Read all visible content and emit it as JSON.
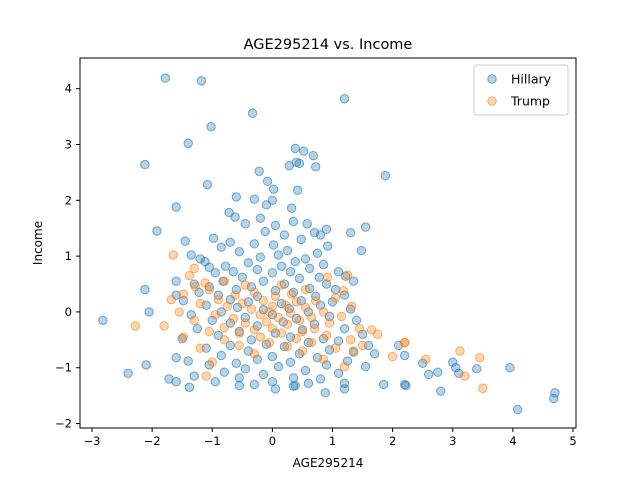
{
  "chart_data": {
    "type": "scatter",
    "title": "AGE295214 vs. Income",
    "xlabel": "AGE295214",
    "ylabel": "Income",
    "xlim": [
      -3.2,
      5.05
    ],
    "ylim": [
      -2.08,
      4.55
    ],
    "xticks": [
      -3,
      -2,
      -1,
      0,
      1,
      2,
      3,
      4,
      5
    ],
    "yticks": [
      -2,
      -1,
      0,
      1,
      2,
      3,
      4
    ],
    "legend_position": "top-right",
    "grid": false,
    "series": [
      {
        "name": "Hillary",
        "color": "#1f77b4",
        "points": [
          [
            -1.78,
            4.19
          ],
          [
            -1.18,
            4.14
          ],
          [
            1.2,
            3.82
          ],
          [
            -0.33,
            3.56
          ],
          [
            -1.02,
            3.32
          ],
          [
            -1.4,
            3.02
          ],
          [
            0.38,
            2.93
          ],
          [
            0.52,
            2.88
          ],
          [
            0.68,
            2.8
          ],
          [
            0.4,
            2.68
          ],
          [
            0.28,
            2.62
          ],
          [
            0.45,
            2.66
          ],
          [
            -2.12,
            2.64
          ],
          [
            0.72,
            2.6
          ],
          [
            -0.22,
            2.52
          ],
          [
            1.88,
            2.44
          ],
          [
            -0.08,
            2.34
          ],
          [
            -1.08,
            2.28
          ],
          [
            0.02,
            2.2
          ],
          [
            0.42,
            2.18
          ],
          [
            -0.6,
            2.06
          ],
          [
            -0.3,
            2.02
          ],
          [
            0.0,
            2.0
          ],
          [
            -0.1,
            1.92
          ],
          [
            -1.6,
            1.88
          ],
          [
            0.32,
            1.86
          ],
          [
            -0.72,
            1.78
          ],
          [
            -0.62,
            1.7
          ],
          [
            -0.2,
            1.68
          ],
          [
            0.35,
            1.62
          ],
          [
            0.58,
            1.58
          ],
          [
            1.55,
            1.52
          ],
          [
            -0.45,
            1.58
          ],
          [
            0.05,
            1.55
          ],
          [
            0.9,
            1.48
          ],
          [
            -1.92,
            1.45
          ],
          [
            1.3,
            1.42
          ],
          [
            -0.12,
            1.44
          ],
          [
            0.2,
            1.38
          ],
          [
            0.7,
            1.42
          ],
          [
            0.8,
            1.38
          ],
          [
            -0.98,
            1.32
          ],
          [
            0.48,
            1.3
          ],
          [
            -0.7,
            1.25
          ],
          [
            -1.45,
            1.27
          ],
          [
            0.02,
            1.2
          ],
          [
            0.92,
            1.18
          ],
          [
            -0.3,
            1.22
          ],
          [
            1.48,
            1.1
          ],
          [
            -0.85,
            1.16
          ],
          [
            0.25,
            1.1
          ],
          [
            -0.55,
            1.08
          ],
          [
            0.75,
            1.05
          ],
          [
            -1.35,
            1.02
          ],
          [
            0.1,
            1.02
          ],
          [
            -0.2,
            0.98
          ],
          [
            0.55,
            0.95
          ],
          [
            -1.2,
            0.95
          ],
          [
            -1.12,
            0.9
          ],
          [
            0.38,
            0.9
          ],
          [
            -0.4,
            0.88
          ],
          [
            0.85,
            0.85
          ],
          [
            -0.78,
            0.82
          ],
          [
            0.15,
            0.82
          ],
          [
            -1.05,
            0.8
          ],
          [
            0.62,
            0.78
          ],
          [
            1.1,
            0.72
          ],
          [
            -0.25,
            0.76
          ],
          [
            -0.65,
            0.72
          ],
          [
            0.3,
            0.72
          ],
          [
            -0.95,
            0.7
          ],
          [
            0.0,
            0.7
          ],
          [
            -1.6,
            0.55
          ],
          [
            1.22,
            0.64
          ],
          [
            0.78,
            0.62
          ],
          [
            -0.5,
            0.62
          ],
          [
            0.45,
            0.6
          ],
          [
            -2.12,
            0.4
          ],
          [
            -1.3,
            0.5
          ],
          [
            -0.15,
            0.55
          ],
          [
            1.35,
            0.55
          ],
          [
            -0.82,
            0.55
          ],
          [
            0.9,
            0.5
          ],
          [
            0.2,
            0.5
          ],
          [
            -1.05,
            0.45
          ],
          [
            -0.35,
            0.45
          ],
          [
            0.62,
            0.42
          ],
          [
            1.05,
            0.4
          ],
          [
            -0.6,
            0.4
          ],
          [
            0.05,
            0.38
          ],
          [
            -1.22,
            0.35
          ],
          [
            0.35,
            0.35
          ],
          [
            -1.6,
            0.3
          ],
          [
            -0.9,
            0.3
          ],
          [
            1.2,
            0.3
          ],
          [
            0.72,
            0.28
          ],
          [
            -0.25,
            0.28
          ],
          [
            -1.48,
            0.2
          ],
          [
            -0.7,
            0.22
          ],
          [
            0.48,
            0.2
          ],
          [
            1.0,
            0.18
          ],
          [
            -0.4,
            0.18
          ],
          [
            0.15,
            0.15
          ],
          [
            -2.05,
            0.0
          ],
          [
            -1.1,
            0.12
          ],
          [
            0.8,
            0.12
          ],
          [
            -0.58,
            0.08
          ],
          [
            0.28,
            0.06
          ],
          [
            1.3,
            0.05
          ],
          [
            -0.15,
            0.04
          ],
          [
            0.6,
            0.0
          ],
          [
            -0.85,
            0.0
          ],
          [
            -1.35,
            -0.05
          ],
          [
            0.0,
            -0.05
          ],
          [
            0.95,
            -0.08
          ],
          [
            -0.45,
            -0.1
          ],
          [
            0.4,
            -0.12
          ],
          [
            1.4,
            -0.15
          ],
          [
            -1.0,
            -0.15
          ],
          [
            0.18,
            -0.18
          ],
          [
            -0.7,
            -0.2
          ],
          [
            0.7,
            -0.22
          ],
          [
            -0.25,
            -0.25
          ],
          [
            1.2,
            -0.3
          ],
          [
            -1.25,
            -0.3
          ],
          [
            0.5,
            -0.32
          ],
          [
            -0.55,
            -0.35
          ],
          [
            0.05,
            -0.38
          ],
          [
            1.5,
            -0.4
          ],
          [
            -0.9,
            -0.42
          ],
          [
            0.3,
            -0.45
          ],
          [
            0.85,
            -0.48
          ],
          [
            -0.35,
            -0.5
          ],
          [
            -1.5,
            -0.48
          ],
          [
            1.1,
            -0.52
          ],
          [
            0.6,
            -0.55
          ],
          [
            -0.1,
            -0.58
          ],
          [
            -0.7,
            -0.6
          ],
          [
            1.6,
            -0.6
          ],
          [
            2.1,
            -0.6
          ],
          [
            0.2,
            -0.62
          ],
          [
            -1.1,
            -0.65
          ],
          [
            0.95,
            -0.68
          ],
          [
            -0.4,
            -0.7
          ],
          [
            1.35,
            -0.72
          ],
          [
            0.45,
            -0.75
          ],
          [
            -0.85,
            -0.78
          ],
          [
            0.0,
            -0.8
          ],
          [
            1.7,
            -0.75
          ],
          [
            2.2,
            -0.78
          ],
          [
            -1.6,
            -0.82
          ],
          [
            0.75,
            -0.82
          ],
          [
            -0.25,
            -0.85
          ],
          [
            -1.4,
            -0.88
          ],
          [
            1.25,
            -0.88
          ],
          [
            0.3,
            -0.9
          ],
          [
            -0.6,
            -0.92
          ],
          [
            2.5,
            -0.92
          ],
          [
            3.0,
            -0.9
          ],
          [
            -1.05,
            -0.95
          ],
          [
            0.9,
            -0.95
          ],
          [
            -2.1,
            -0.95
          ],
          [
            0.1,
            -0.98
          ],
          [
            1.55,
            -0.98
          ],
          [
            3.05,
            -1.0
          ],
          [
            3.4,
            -1.02
          ],
          [
            3.95,
            -1.0
          ],
          [
            -0.45,
            -1.02
          ],
          [
            2.75,
            -1.08
          ],
          [
            -2.4,
            -1.1
          ],
          [
            0.55,
            -1.05
          ],
          [
            -0.8,
            -1.08
          ],
          [
            1.1,
            -1.1
          ],
          [
            3.1,
            -1.1
          ],
          [
            2.6,
            -1.12
          ],
          [
            -0.15,
            -1.12
          ],
          [
            -1.3,
            -1.15
          ],
          [
            0.35,
            -1.18
          ],
          [
            -0.55,
            -1.18
          ],
          [
            0.8,
            -1.2
          ],
          [
            -1.72,
            -1.2
          ],
          [
            -1.6,
            -1.25
          ],
          [
            0.0,
            -1.25
          ],
          [
            1.2,
            -1.28
          ],
          [
            -0.95,
            -1.25
          ],
          [
            0.6,
            -1.28
          ],
          [
            1.85,
            -1.3
          ],
          [
            2.2,
            -1.3
          ],
          [
            -0.3,
            -1.3
          ],
          [
            2.22,
            -1.32
          ],
          [
            -0.55,
            -1.32
          ],
          [
            0.35,
            -1.33
          ],
          [
            0.38,
            -1.32
          ],
          [
            -1.38,
            -1.35
          ],
          [
            0.05,
            -1.38
          ],
          [
            1.2,
            -1.38
          ],
          [
            2.8,
            -1.42
          ],
          [
            0.88,
            -1.45
          ],
          [
            4.7,
            -1.45
          ],
          [
            4.68,
            -1.55
          ],
          [
            4.08,
            -1.75
          ],
          [
            -2.82,
            -0.15
          ]
        ]
      },
      {
        "name": "Trump",
        "color": "#ff7f0e",
        "points": [
          [
            -1.65,
            1.02
          ],
          [
            -1.3,
            0.78
          ],
          [
            -1.38,
            0.65
          ],
          [
            -1.12,
            0.52
          ],
          [
            -1.28,
            0.45
          ],
          [
            1.25,
            0.66
          ],
          [
            0.92,
            0.62
          ],
          [
            -0.8,
            0.55
          ],
          [
            -0.45,
            0.48
          ],
          [
            0.15,
            0.48
          ],
          [
            -1.05,
            0.4
          ],
          [
            0.55,
            0.4
          ],
          [
            1.18,
            0.38
          ],
          [
            -0.3,
            0.35
          ],
          [
            -1.48,
            0.32
          ],
          [
            0.32,
            0.32
          ],
          [
            -0.62,
            0.3
          ],
          [
            0.05,
            0.28
          ],
          [
            1.05,
            0.25
          ],
          [
            -1.68,
            0.22
          ],
          [
            -0.9,
            0.22
          ],
          [
            0.72,
            0.2
          ],
          [
            -0.15,
            0.2
          ],
          [
            0.4,
            0.18
          ],
          [
            -1.2,
            0.15
          ],
          [
            -0.5,
            0.15
          ],
          [
            0.22,
            0.12
          ],
          [
            1.32,
            0.1
          ],
          [
            -0.75,
            0.1
          ],
          [
            0.0,
            0.1
          ],
          [
            0.55,
            0.08
          ],
          [
            -0.35,
            0.05
          ],
          [
            -1.55,
            0.0
          ],
          [
            0.85,
            0.0
          ],
          [
            -0.05,
            0.0
          ],
          [
            0.3,
            -0.02
          ],
          [
            -0.95,
            -0.05
          ],
          [
            -0.2,
            -0.05
          ],
          [
            1.15,
            -0.08
          ],
          [
            0.65,
            -0.1
          ],
          [
            0.1,
            -0.1
          ],
          [
            -0.65,
            -0.12
          ],
          [
            -1.3,
            -0.15
          ],
          [
            0.45,
            -0.15
          ],
          [
            -0.1,
            -0.18
          ],
          [
            0.95,
            -0.2
          ],
          [
            -0.45,
            -0.2
          ],
          [
            0.25,
            -0.22
          ],
          [
            -1.8,
            -0.25
          ],
          [
            -2.28,
            -0.25
          ],
          [
            -0.8,
            -0.28
          ],
          [
            1.45,
            -0.3
          ],
          [
            0.7,
            -0.3
          ],
          [
            0.0,
            -0.3
          ],
          [
            -0.3,
            -0.32
          ],
          [
            1.65,
            -0.32
          ],
          [
            0.5,
            -0.35
          ],
          [
            -1.05,
            -0.35
          ],
          [
            -0.55,
            -0.38
          ],
          [
            0.15,
            -0.38
          ],
          [
            1.75,
            -0.4
          ],
          [
            0.9,
            -0.42
          ],
          [
            -1.48,
            -0.45
          ],
          [
            -0.2,
            -0.45
          ],
          [
            0.4,
            -0.48
          ],
          [
            1.3,
            -0.5
          ],
          [
            -0.8,
            -0.5
          ],
          [
            0.65,
            -0.55
          ],
          [
            -0.05,
            -0.55
          ],
          [
            2.2,
            -0.55
          ],
          [
            1.5,
            -0.6
          ],
          [
            -0.55,
            -0.6
          ],
          [
            0.25,
            -0.62
          ],
          [
            1.05,
            -0.65
          ],
          [
            -1.2,
            -0.65
          ],
          [
            1.35,
            -0.7
          ],
          [
            0.5,
            -0.7
          ],
          [
            2.55,
            -0.85
          ],
          [
            -0.3,
            -0.75
          ],
          [
            2.0,
            -0.8
          ],
          [
            3.12,
            -0.7
          ],
          [
            3.45,
            -0.82
          ],
          [
            -1.0,
            -0.9
          ],
          [
            0.85,
            -0.85
          ],
          [
            1.2,
            -0.98
          ],
          [
            -1.1,
            -1.15
          ],
          [
            2.2,
            -0.55
          ],
          [
            3.2,
            -1.15
          ],
          [
            3.5,
            -1.37
          ]
        ]
      }
    ]
  }
}
